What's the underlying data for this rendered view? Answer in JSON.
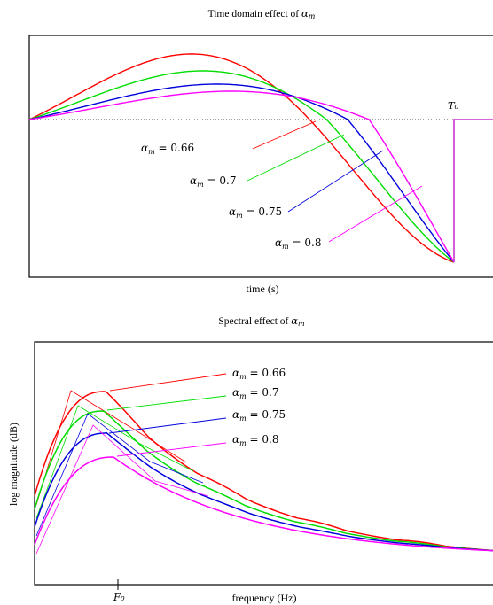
{
  "chart_data": [
    {
      "type": "line",
      "title": "Time domain effect of αₘ",
      "title_prefix": "Time domain effect of ",
      "xlabel": "time (s)",
      "ylabel": "",
      "grid": false,
      "annotations": {
        "t0": "T₀"
      },
      "series": [
        {
          "name": "αm = 0.66",
          "name_var": "α",
          "name_sub": "m",
          "name_rest": " = 0.66",
          "color": "#ff0000",
          "alpha_m": 0.66
        },
        {
          "name": "αm = 0.7",
          "name_var": "α",
          "name_sub": "m",
          "name_rest": " = 0.7",
          "color": "#00dd00",
          "alpha_m": 0.7
        },
        {
          "name": "αm = 0.75",
          "name_var": "α",
          "name_sub": "m",
          "name_rest": " = 0.75",
          "color": "#0000dd",
          "alpha_m": 0.75
        },
        {
          "name": "αm = 0.8",
          "name_var": "α",
          "name_sub": "m",
          "name_rest": " = 0.8",
          "color": "#ff00ff",
          "alpha_m": 0.8
        }
      ]
    },
    {
      "type": "line",
      "title": "Spectral effect of αₘ",
      "title_prefix": "Spectral effect of ",
      "xlabel": "frequency (Hz)",
      "ylabel": "log magnitude (dB)",
      "grid": false,
      "x_ticks": [
        "F₀"
      ],
      "series": [
        {
          "name": "αm = 0.66",
          "name_var": "α",
          "name_sub": "m",
          "name_rest": " = 0.66",
          "color": "#ff0000",
          "alpha_m": 0.66
        },
        {
          "name": "αm = 0.7",
          "name_var": "α",
          "name_sub": "m",
          "name_rest": " = 0.7",
          "color": "#00dd00",
          "alpha_m": 0.7
        },
        {
          "name": "αm = 0.75",
          "name_var": "α",
          "name_sub": "m",
          "name_rest": " = 0.75",
          "color": "#0000dd",
          "alpha_m": 0.75
        },
        {
          "name": "αm = 0.8",
          "name_var": "α",
          "name_sub": "m",
          "name_rest": " = 0.8",
          "color": "#ff00ff",
          "alpha_m": 0.8
        }
      ]
    }
  ]
}
